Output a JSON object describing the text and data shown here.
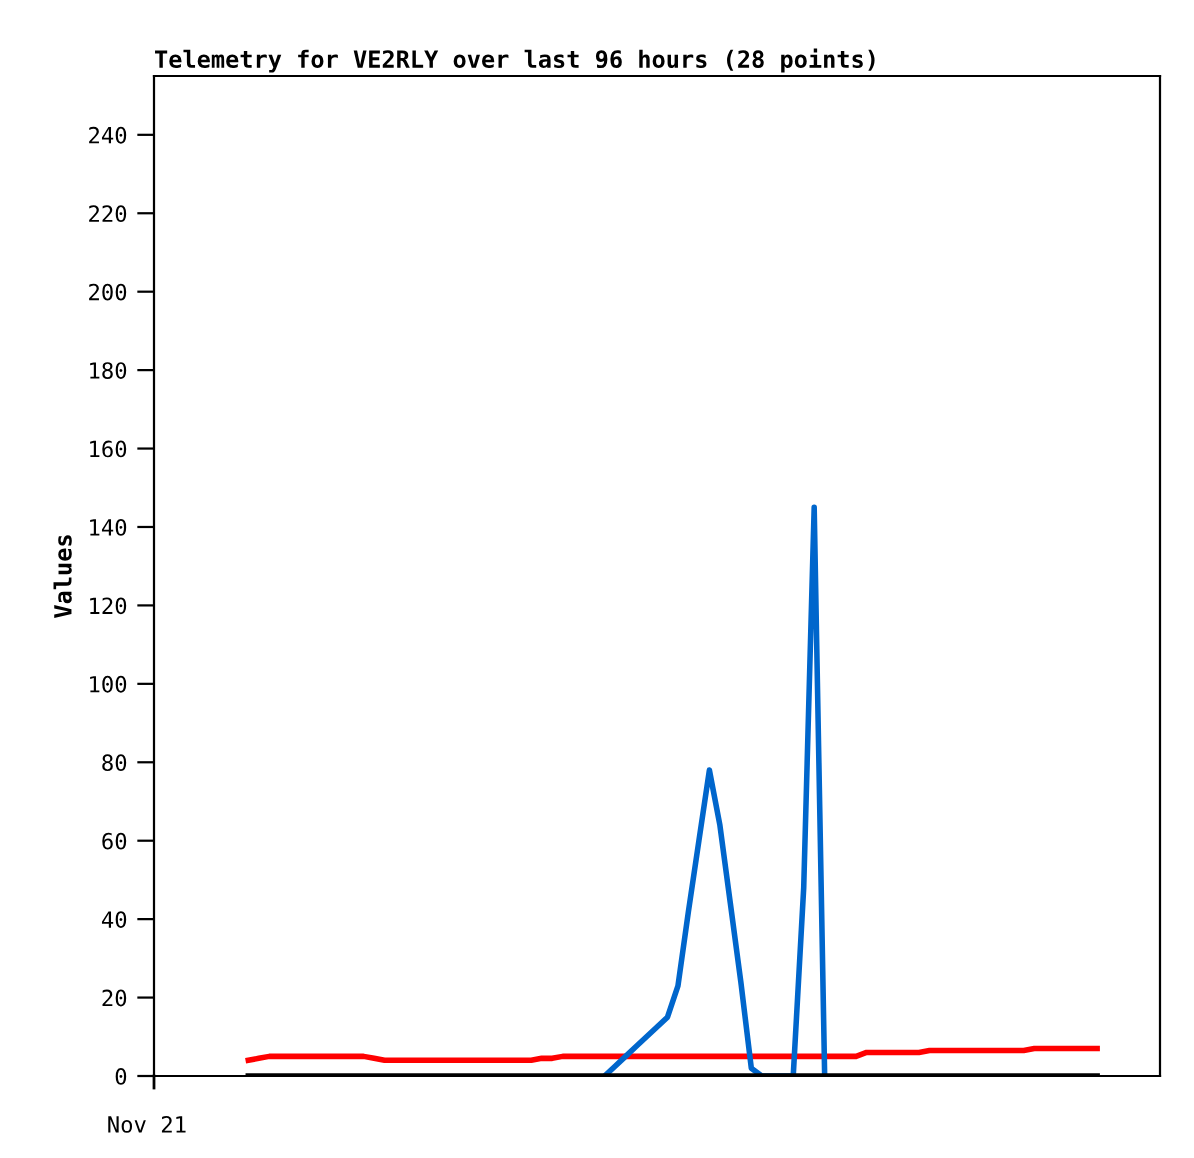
{
  "chart_data": {
    "type": "line",
    "title": "Telemetry for VE2RLY over last 96 hours (28 points)",
    "ylabel": "Values",
    "annotations": [
      "Nov 21"
    ],
    "ylim": [
      0,
      255
    ],
    "yticks": [
      0,
      20,
      40,
      60,
      80,
      100,
      120,
      140,
      160,
      180,
      200,
      220,
      240
    ],
    "grid": false,
    "marker": "none",
    "line_style": "solid",
    "categories": [
      null,
      null,
      null,
      null,
      null,
      null,
      null,
      null,
      null,
      null,
      null,
      null,
      null,
      null,
      null,
      null,
      null,
      null,
      null,
      null,
      null,
      null,
      null,
      null,
      null,
      null,
      null,
      null,
      null,
      null,
      null,
      null,
      null,
      null,
      null,
      null,
      null,
      null,
      null,
      null,
      null,
      null,
      null,
      null,
      null,
      null,
      null,
      null,
      null,
      null,
      null,
      null,
      null,
      null,
      null,
      null,
      null,
      null,
      null,
      null,
      null,
      null,
      null,
      null,
      null,
      null,
      null,
      null,
      null,
      null,
      null,
      null,
      null,
      null,
      null,
      null,
      null,
      null,
      null,
      null,
      null,
      null,
      null,
      null,
      null,
      null,
      null,
      null,
      null,
      null,
      null,
      null,
      null,
      null,
      null,
      null,
      null
    ],
    "series": [
      {
        "color": "#ff0000",
        "values": [
          null,
          null,
          null,
          null,
          null,
          null,
          null,
          null,
          null,
          4,
          4.5,
          5,
          5,
          5,
          5,
          5,
          5,
          5,
          5,
          5,
          5,
          4.5,
          4,
          4,
          4,
          4,
          4,
          4,
          4,
          4,
          4,
          4,
          4,
          4,
          4,
          4,
          4,
          4.5,
          4.5,
          5,
          5,
          5,
          5,
          5,
          5,
          5,
          5,
          5,
          5,
          5,
          5,
          5,
          5,
          5,
          5,
          5,
          5,
          5,
          5,
          5,
          5,
          5,
          5,
          5,
          5,
          5,
          5,
          5,
          6,
          6,
          6,
          6,
          6,
          6,
          6.5,
          6.5,
          6.5,
          6.5,
          6.5,
          6.5,
          6.5,
          6.5,
          6.5,
          6.5,
          7,
          7,
          7,
          7,
          7,
          7,
          7,
          null,
          null,
          null,
          null,
          null,
          null
        ]
      },
      {
        "color": "#0066cc",
        "values": [
          null,
          null,
          null,
          null,
          null,
          null,
          null,
          null,
          null,
          null,
          null,
          null,
          null,
          null,
          null,
          null,
          null,
          null,
          null,
          null,
          null,
          null,
          null,
          null,
          null,
          null,
          null,
          null,
          null,
          null,
          null,
          null,
          null,
          null,
          null,
          null,
          null,
          null,
          null,
          null,
          null,
          null,
          null,
          0,
          2.5,
          5,
          7.5,
          10,
          12.5,
          15,
          23,
          42,
          60,
          78,
          64,
          44,
          24,
          2,
          0,
          0,
          0,
          0,
          48,
          145,
          0,
          null,
          null,
          null,
          null,
          null,
          null,
          null,
          null,
          null,
          null,
          null,
          null,
          null,
          null,
          null,
          null,
          null,
          null,
          null,
          null,
          null,
          null,
          null,
          null,
          null,
          null,
          null,
          null,
          null,
          null,
          null,
          null
        ]
      },
      {
        "color": "#000000",
        "values": [
          null,
          null,
          null,
          null,
          null,
          null,
          null,
          null,
          null,
          0,
          0,
          0,
          0,
          0,
          0,
          0,
          0,
          0,
          0,
          0,
          0,
          0,
          0,
          0,
          0,
          0,
          0,
          0,
          0,
          0,
          0,
          0,
          0,
          0,
          0,
          0,
          0,
          0,
          0,
          0,
          0,
          0,
          0,
          0,
          0,
          0,
          0,
          0,
          0,
          0,
          0,
          0,
          0,
          0,
          0,
          0,
          0,
          0,
          0,
          0,
          0,
          0,
          0,
          0,
          0,
          0,
          0,
          0,
          0,
          0,
          0,
          0,
          0,
          0,
          0,
          0,
          0,
          0,
          0,
          0,
          0,
          0,
          0,
          0,
          0,
          0,
          0,
          0,
          0,
          0,
          0,
          null,
          null,
          null,
          null,
          null,
          null
        ]
      }
    ]
  }
}
